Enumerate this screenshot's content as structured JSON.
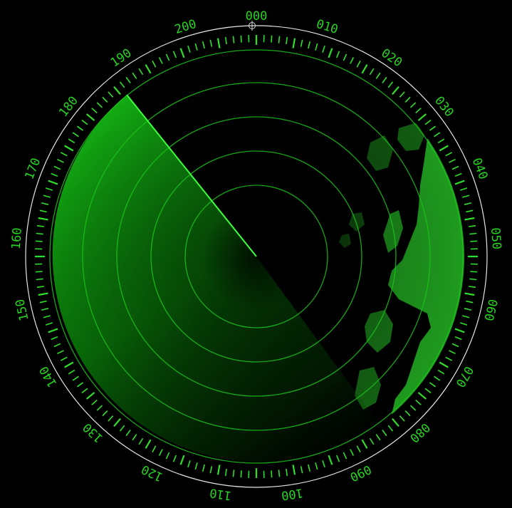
{
  "radar": {
    "bearing_labels": [
      "000",
      "010",
      "020",
      "030",
      "040",
      "050",
      "060",
      "070",
      "080",
      "090",
      "100",
      "110",
      "120",
      "130",
      "140",
      "150",
      "160",
      "170",
      "180",
      "190",
      "200"
    ],
    "sweep": {
      "span_degrees": 180
    },
    "colors": {
      "background": "#000000",
      "scope_ring": "#e6e6e6",
      "tick": "#2fe02a",
      "range_ring": "#1cc41c",
      "sweep_edge": "#3cff3c",
      "sweep_fill": "#12b012",
      "land_echo": "#25b825",
      "label": "#27d41f"
    },
    "icons": {
      "north_marker": "crosshair-icon"
    }
  }
}
